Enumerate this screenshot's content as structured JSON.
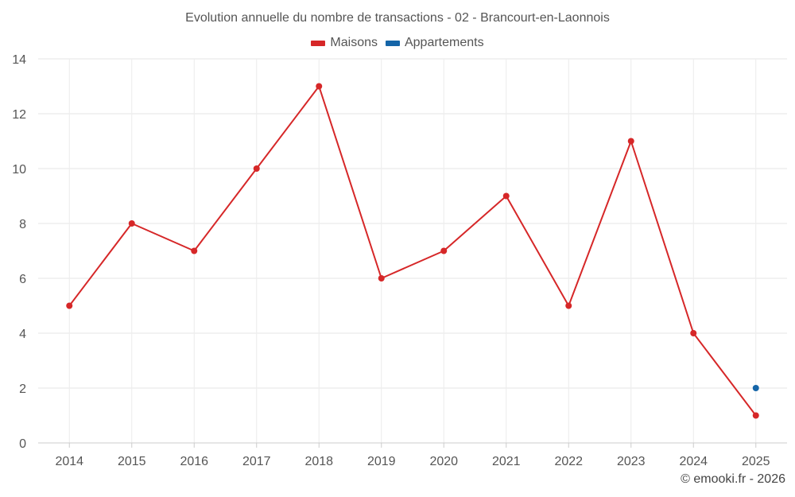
{
  "chart_data": {
    "type": "line",
    "title": "Evolution annuelle du nombre de transactions - 02 - Brancourt-en-Laonnois",
    "categories": [
      "2014",
      "2015",
      "2016",
      "2017",
      "2018",
      "2019",
      "2020",
      "2021",
      "2022",
      "2023",
      "2024",
      "2025"
    ],
    "series": [
      {
        "name": "Maisons",
        "color": "#d62728",
        "values": [
          5,
          8,
          7,
          10,
          13,
          6,
          7,
          9,
          5,
          11,
          4,
          1
        ]
      },
      {
        "name": "Appartements",
        "color": "#1565a8",
        "values": [
          null,
          null,
          null,
          null,
          null,
          null,
          null,
          null,
          null,
          null,
          null,
          2
        ]
      }
    ],
    "ylim": [
      0,
      14
    ],
    "yticks": [
      0,
      2,
      4,
      6,
      8,
      10,
      12,
      14
    ],
    "grid": true,
    "legend_position": "top-center",
    "xlabel": "",
    "ylabel": ""
  },
  "credit": "© emooki.fr - 2026"
}
